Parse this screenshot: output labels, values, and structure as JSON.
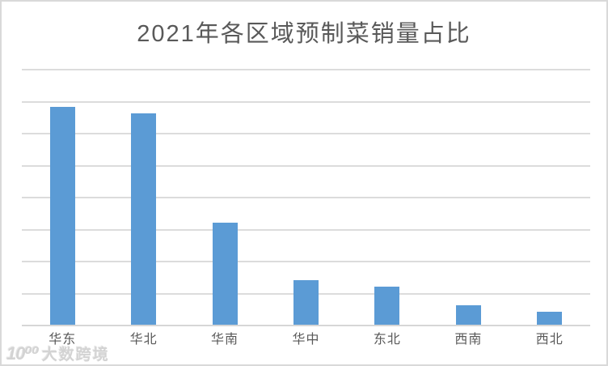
{
  "page": {
    "background_color": "#ffffff",
    "border_color": "#d9d9d9"
  },
  "chart_data": {
    "type": "bar",
    "title": "2021年各区域预制菜销量占比",
    "categories": [
      "华东",
      "华北",
      "华南",
      "华中",
      "东北",
      "西南",
      "西北"
    ],
    "values": [
      34,
      33,
      16,
      7,
      6,
      3,
      2
    ],
    "unit": "percent",
    "xlabel": "",
    "ylabel": "",
    "ylim": [
      0,
      40
    ],
    "gridline_step": 5,
    "grid": "horizontal-only",
    "legend": "none",
    "y_axis_tick_labels_visible": false,
    "data_labels_visible": false,
    "bar_color": "#5b9bd5",
    "gridline_color": "#dcdcdc",
    "axis_line_color": "#d6d6d6",
    "title_color": "#595959",
    "category_label_color": "#595959"
  },
  "watermark": {
    "logo": "10⁰⁰",
    "text": "大数跨境"
  }
}
